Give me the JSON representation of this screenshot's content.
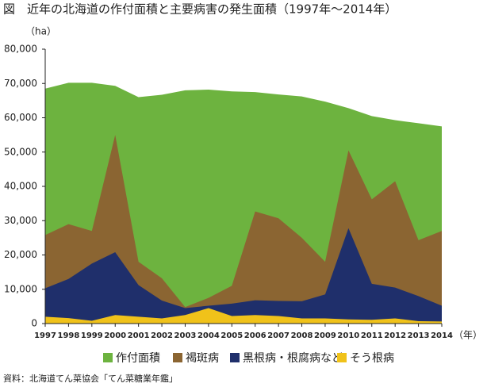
{
  "chart_data": {
    "type": "area",
    "title": "図　近年の北海道の作付面積と主要病害の発生面積（1997年～2014年）",
    "y_label": "（ha）",
    "x_label": "（年）",
    "source": "資料：北海道てん菜協会「てん菜糖業年鑑」",
    "x": [
      1997,
      1998,
      1999,
      2000,
      2001,
      2002,
      2003,
      2004,
      2005,
      2006,
      2007,
      2008,
      2009,
      2010,
      2011,
      2012,
      2013,
      2014
    ],
    "xlim": [
      1997,
      2014
    ],
    "ylim": [
      0,
      80000
    ],
    "yticks": [
      0,
      {
        "value": 10000,
        "label": "10,000"
      },
      {
        "value": 20000,
        "label": "20,000"
      },
      {
        "value": 30000,
        "label": "30,000"
      },
      {
        "value": 40000,
        "label": "40,000"
      },
      {
        "value": 50000,
        "label": "50,000"
      },
      {
        "value": 60000,
        "label": "60,000"
      },
      {
        "value": 70000,
        "label": "70,000"
      },
      {
        "value": 80000,
        "label": "80,000"
      }
    ],
    "series": [
      {
        "name": "作付面積",
        "color": "#6db33f",
        "values": [
          68500,
          70200,
          70200,
          69300,
          66000,
          66700,
          68000,
          68200,
          67700,
          67500,
          66800,
          66200,
          64700,
          62800,
          60500,
          59300,
          58400,
          57500
        ]
      },
      {
        "name": "褐斑病",
        "color": "#8b6532",
        "values": [
          25800,
          29000,
          27000,
          55000,
          18000,
          13200,
          4800,
          7500,
          11000,
          32700,
          30700,
          25000,
          18000,
          50500,
          36200,
          41500,
          24300,
          27000
        ]
      },
      {
        "name": "黒根病・根腐病など",
        "color": "#1f2f6b",
        "values": [
          10300,
          13000,
          17500,
          20800,
          11200,
          6700,
          4500,
          5200,
          5800,
          6800,
          6600,
          6500,
          8500,
          27800,
          11600,
          10500,
          8000,
          5200
        ]
      },
      {
        "name": "そう根病",
        "color": "#f0c21a",
        "values": [
          2000,
          1600,
          800,
          2500,
          2000,
          1500,
          2500,
          4500,
          2200,
          2500,
          2200,
          1500,
          1500,
          1200,
          1100,
          1500,
          700,
          600
        ]
      }
    ]
  }
}
